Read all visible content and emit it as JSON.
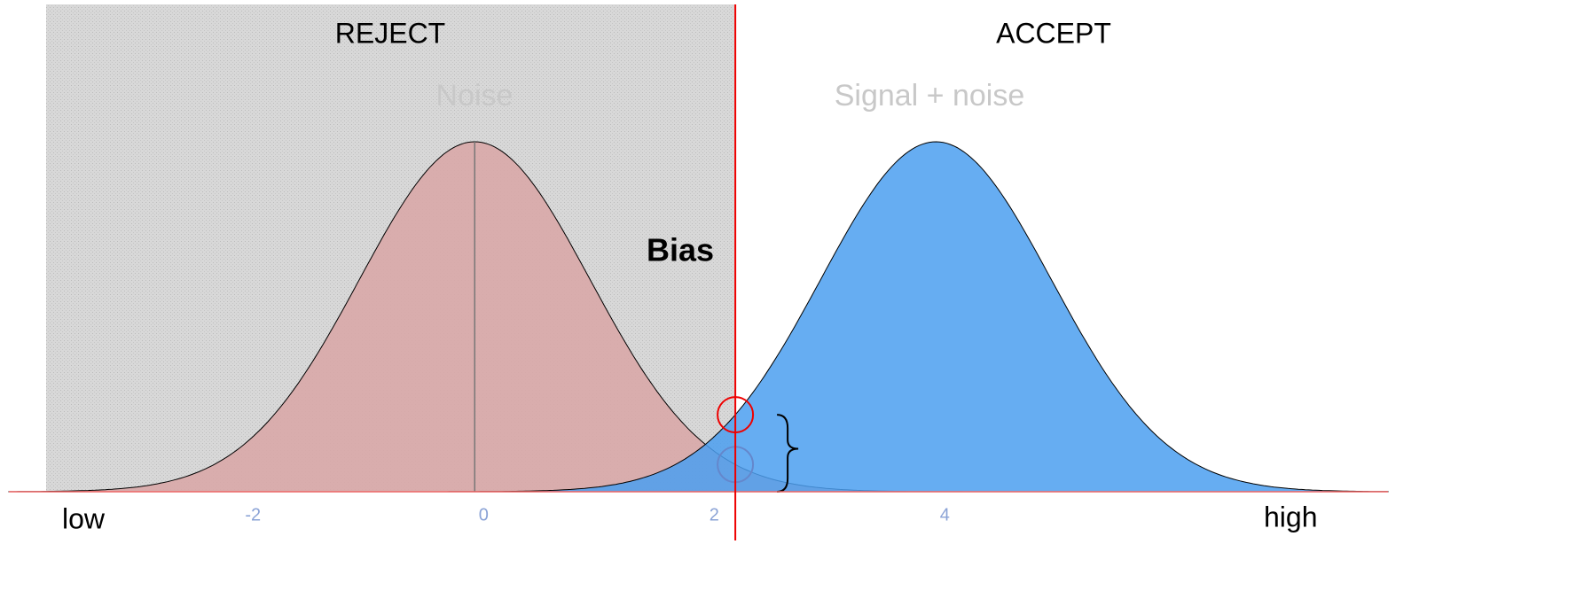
{
  "chart_data": {
    "type": "distributions",
    "regions": [
      "REJECT",
      "ACCEPT"
    ],
    "distributions": [
      {
        "name": "Noise",
        "mean": 0,
        "sd": 1,
        "color": "#d9a9a9"
      },
      {
        "name": "Signal + noise",
        "mean": 4,
        "sd": 1,
        "color": "#4b9ff0"
      }
    ],
    "criterion": 2.26,
    "annotation": "Bias",
    "axis_labels": [
      "low",
      "high"
    ],
    "xlim": [
      -4.04,
      7.92
    ],
    "xticks": [
      -2,
      0,
      2,
      4
    ]
  }
}
